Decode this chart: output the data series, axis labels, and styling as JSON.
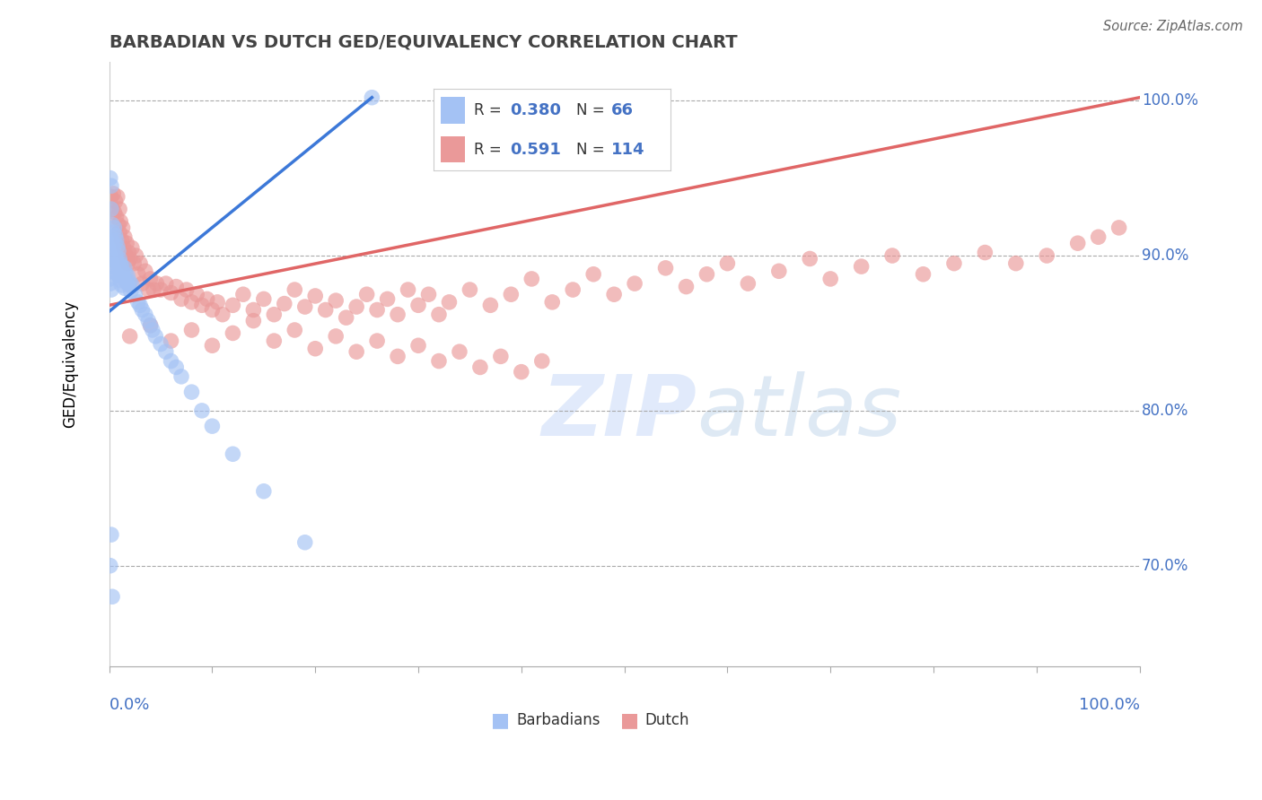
{
  "title": "BARBADIAN VS DUTCH GED/EQUIVALENCY CORRELATION CHART",
  "source": "Source: ZipAtlas.com",
  "ylabel": "GED/Equivalency",
  "legend_blue_r": "0.380",
  "legend_blue_n": "66",
  "legend_pink_r": "0.591",
  "legend_pink_n": "114",
  "blue_color": "#a4c2f4",
  "pink_color": "#ea9999",
  "blue_line_color": "#3c78d8",
  "pink_line_color": "#e06666",
  "title_color": "#434343",
  "axis_label_color": "#4472c4",
  "watermark_color": "#cfe2f3",
  "xlim": [
    0.0,
    1.0
  ],
  "ylim": [
    0.635,
    1.025
  ],
  "ytick_positions": [
    0.7,
    0.8,
    0.9,
    1.0
  ],
  "ytick_labels": [
    "70.0%",
    "80.0%",
    "90.0%",
    "100.0%"
  ],
  "blue_line_x0": 0.0,
  "blue_line_y0": 0.864,
  "blue_line_x1": 0.255,
  "blue_line_y1": 1.002,
  "pink_line_x0": 0.0,
  "pink_line_y0": 0.868,
  "pink_line_x1": 1.0,
  "pink_line_y1": 1.002,
  "blue_x": [
    0.001,
    0.001,
    0.001,
    0.002,
    0.002,
    0.002,
    0.003,
    0.003,
    0.003,
    0.003,
    0.004,
    0.004,
    0.004,
    0.005,
    0.005,
    0.005,
    0.006,
    0.006,
    0.007,
    0.007,
    0.007,
    0.008,
    0.008,
    0.009,
    0.009,
    0.01,
    0.01,
    0.011,
    0.011,
    0.012,
    0.012,
    0.013,
    0.014,
    0.015,
    0.015,
    0.016,
    0.017,
    0.018,
    0.019,
    0.02,
    0.021,
    0.022,
    0.025,
    0.028,
    0.03,
    0.032,
    0.035,
    0.038,
    0.04,
    0.042,
    0.045,
    0.05,
    0.055,
    0.06,
    0.065,
    0.07,
    0.08,
    0.09,
    0.1,
    0.12,
    0.15,
    0.19,
    0.255,
    0.001,
    0.002,
    0.003
  ],
  "blue_y": [
    0.95,
    0.885,
    0.882,
    0.945,
    0.93,
    0.878,
    0.92,
    0.91,
    0.902,
    0.89,
    0.915,
    0.905,
    0.893,
    0.918,
    0.908,
    0.897,
    0.913,
    0.9,
    0.91,
    0.898,
    0.888,
    0.906,
    0.895,
    0.903,
    0.892,
    0.898,
    0.887,
    0.895,
    0.884,
    0.893,
    0.881,
    0.89,
    0.887,
    0.892,
    0.879,
    0.888,
    0.883,
    0.887,
    0.881,
    0.883,
    0.877,
    0.881,
    0.875,
    0.87,
    0.868,
    0.865,
    0.862,
    0.858,
    0.855,
    0.852,
    0.848,
    0.843,
    0.838,
    0.832,
    0.828,
    0.822,
    0.812,
    0.8,
    0.79,
    0.772,
    0.748,
    0.715,
    1.002,
    0.7,
    0.72,
    0.68
  ],
  "pink_x": [
    0.002,
    0.003,
    0.004,
    0.005,
    0.006,
    0.007,
    0.008,
    0.009,
    0.01,
    0.01,
    0.011,
    0.012,
    0.013,
    0.014,
    0.015,
    0.016,
    0.017,
    0.018,
    0.019,
    0.02,
    0.022,
    0.024,
    0.026,
    0.028,
    0.03,
    0.032,
    0.035,
    0.038,
    0.04,
    0.043,
    0.046,
    0.05,
    0.055,
    0.06,
    0.065,
    0.07,
    0.075,
    0.08,
    0.085,
    0.09,
    0.095,
    0.1,
    0.105,
    0.11,
    0.12,
    0.13,
    0.14,
    0.15,
    0.16,
    0.17,
    0.18,
    0.19,
    0.2,
    0.21,
    0.22,
    0.23,
    0.24,
    0.25,
    0.26,
    0.27,
    0.28,
    0.29,
    0.3,
    0.31,
    0.32,
    0.33,
    0.35,
    0.37,
    0.39,
    0.41,
    0.43,
    0.45,
    0.47,
    0.49,
    0.51,
    0.54,
    0.56,
    0.58,
    0.6,
    0.62,
    0.65,
    0.68,
    0.7,
    0.73,
    0.76,
    0.79,
    0.82,
    0.85,
    0.88,
    0.91,
    0.94,
    0.96,
    0.98,
    0.02,
    0.04,
    0.06,
    0.08,
    0.1,
    0.12,
    0.14,
    0.16,
    0.18,
    0.2,
    0.22,
    0.24,
    0.26,
    0.28,
    0.3,
    0.32,
    0.34,
    0.36,
    0.38,
    0.4,
    0.42
  ],
  "pink_y": [
    0.938,
    0.93,
    0.94,
    0.928,
    0.935,
    0.925,
    0.938,
    0.92,
    0.93,
    0.915,
    0.922,
    0.91,
    0.918,
    0.905,
    0.912,
    0.9,
    0.908,
    0.895,
    0.902,
    0.898,
    0.905,
    0.895,
    0.9,
    0.888,
    0.895,
    0.882,
    0.89,
    0.878,
    0.885,
    0.878,
    0.882,
    0.878,
    0.882,
    0.876,
    0.88,
    0.872,
    0.878,
    0.87,
    0.875,
    0.868,
    0.872,
    0.865,
    0.87,
    0.862,
    0.868,
    0.875,
    0.865,
    0.872,
    0.862,
    0.869,
    0.878,
    0.867,
    0.874,
    0.865,
    0.871,
    0.86,
    0.867,
    0.875,
    0.865,
    0.872,
    0.862,
    0.878,
    0.868,
    0.875,
    0.862,
    0.87,
    0.878,
    0.868,
    0.875,
    0.885,
    0.87,
    0.878,
    0.888,
    0.875,
    0.882,
    0.892,
    0.88,
    0.888,
    0.895,
    0.882,
    0.89,
    0.898,
    0.885,
    0.893,
    0.9,
    0.888,
    0.895,
    0.902,
    0.895,
    0.9,
    0.908,
    0.912,
    0.918,
    0.848,
    0.855,
    0.845,
    0.852,
    0.842,
    0.85,
    0.858,
    0.845,
    0.852,
    0.84,
    0.848,
    0.838,
    0.845,
    0.835,
    0.842,
    0.832,
    0.838,
    0.828,
    0.835,
    0.825,
    0.832
  ]
}
